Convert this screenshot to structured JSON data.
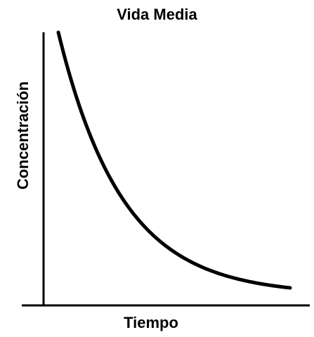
{
  "chart_data": {
    "type": "line",
    "title": "Vida Media",
    "xlabel": "Tiempo",
    "ylabel": "Concentración",
    "grid": false,
    "legend": "none",
    "ticks": false,
    "curve": "exponential-decay",
    "line_color": "#000000"
  }
}
